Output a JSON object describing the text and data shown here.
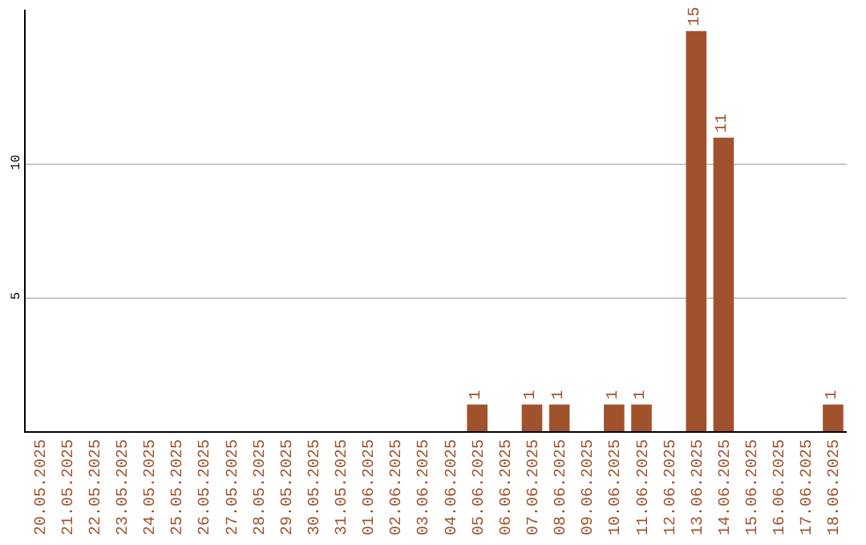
{
  "chart_data": {
    "type": "bar",
    "categories": [
      "20.05.2025",
      "21.05.2025",
      "22.05.2025",
      "23.05.2025",
      "24.05.2025",
      "25.05.2025",
      "26.05.2025",
      "27.05.2025",
      "28.05.2025",
      "29.05.2025",
      "30.05.2025",
      "31.05.2025",
      "01.06.2025",
      "02.06.2025",
      "03.06.2025",
      "04.06.2025",
      "05.06.2025",
      "06.06.2025",
      "07.06.2025",
      "08.06.2025",
      "09.06.2025",
      "10.06.2025",
      "11.06.2025",
      "12.06.2025",
      "13.06.2025",
      "14.06.2025",
      "15.06.2025",
      "16.06.2025",
      "17.06.2025",
      "18.06.2025"
    ],
    "values": [
      0,
      0,
      0,
      0,
      0,
      0,
      0,
      0,
      0,
      0,
      0,
      0,
      0,
      0,
      0,
      0,
      1,
      0,
      1,
      1,
      0,
      1,
      1,
      0,
      15,
      11,
      0,
      0,
      0,
      1
    ],
    "value_labels": [
      null,
      null,
      null,
      null,
      null,
      null,
      null,
      null,
      null,
      null,
      null,
      null,
      null,
      null,
      null,
      null,
      "1",
      null,
      "1",
      "1",
      null,
      "1",
      "1",
      null,
      "15",
      "11",
      null,
      null,
      null,
      "1"
    ],
    "color": "#a0522d",
    "ylim": [
      0,
      15.8
    ],
    "yticks": [
      5,
      10
    ],
    "grid": "y",
    "legend": false
  }
}
